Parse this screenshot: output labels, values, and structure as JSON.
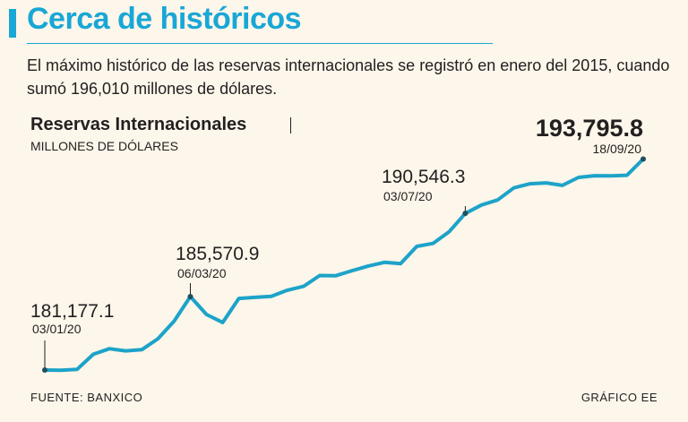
{
  "header": {
    "title": "Cerca de históricos",
    "subtitle": "El máximo histórico de las reservas internacionales se registró en enero del 2015, cuando sumó 196,010 millones de dólares."
  },
  "colors": {
    "accent": "#19a7d6",
    "line": "#1da3c9",
    "background": "#fdf6ea",
    "text": "#231f20"
  },
  "chart_data": {
    "type": "line",
    "title": "Reservas Internacionales",
    "units": "MILLONES DE DÓLARES",
    "xlabel": "",
    "ylabel": "",
    "ylim": [
      180800,
      194200
    ],
    "values": [
      181177.1,
      181160,
      181220,
      182120,
      182450,
      182320,
      182390,
      183050,
      184100,
      185570.9,
      184500,
      184020,
      185460,
      185520,
      185580,
      185950,
      186180,
      186830,
      186820,
      187120,
      187400,
      187620,
      187540,
      188570,
      188750,
      189450,
      190546.3,
      191050,
      191350,
      192070,
      192320,
      192370,
      192220,
      192700,
      192800,
      192790,
      192830,
      193795.8
    ],
    "annotations": [
      {
        "index": 0,
        "value": "181,177.1",
        "date": "03/01/20"
      },
      {
        "index": 9,
        "value": "185,570.9",
        "date": "06/03/20"
      },
      {
        "index": 26,
        "value": "190,546.3",
        "date": "03/07/20"
      },
      {
        "index": 37,
        "value": "193,795.8",
        "date": "18/09/20"
      }
    ]
  },
  "footer": {
    "source": "FUENTE: BANXICO",
    "credit": "GRÁFICO EE"
  }
}
